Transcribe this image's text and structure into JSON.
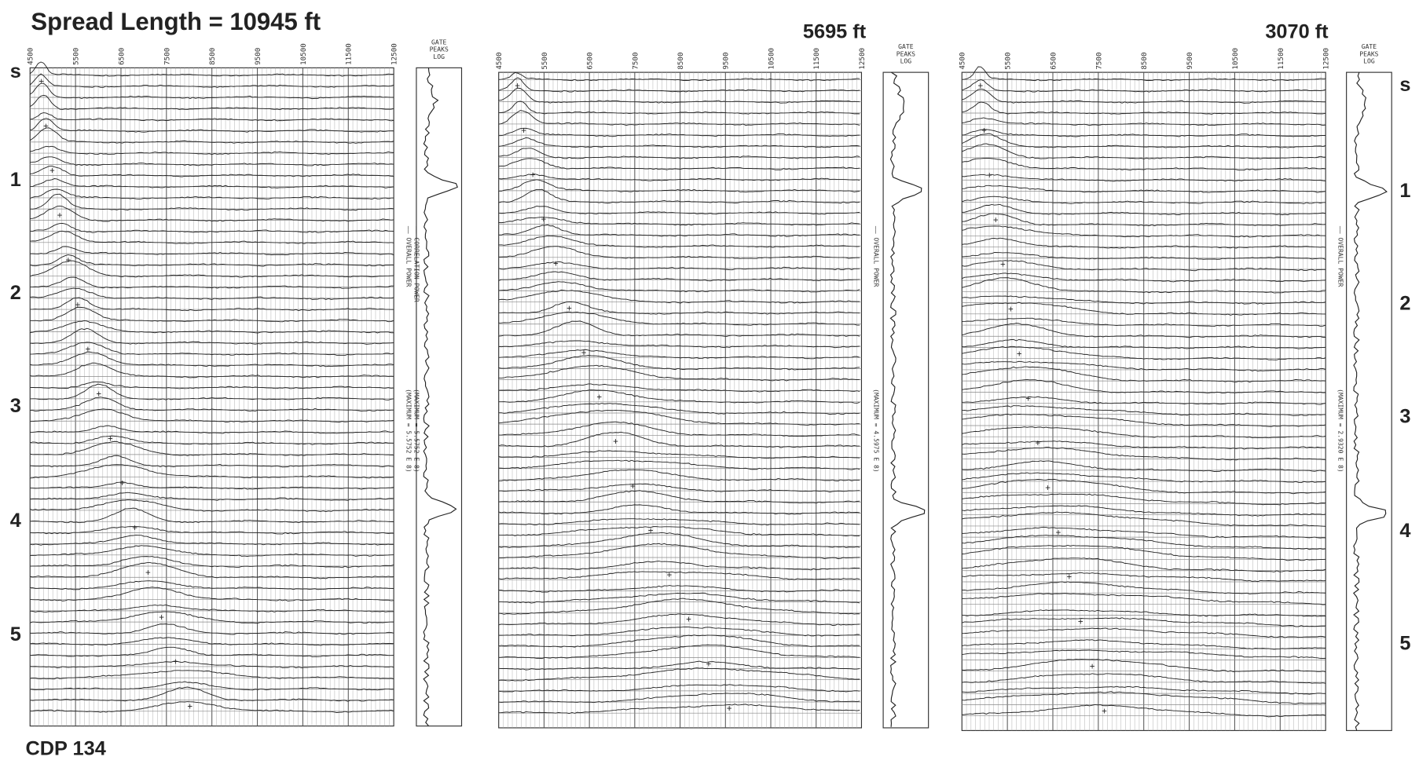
{
  "title": "Spread Length = 10945 ft",
  "footer": "CDP 134",
  "time_labels_left": [
    "s",
    "1",
    "2",
    "3",
    "4",
    "5"
  ],
  "time_labels_right": [
    "s",
    "1",
    "2",
    "3",
    "4",
    "5"
  ],
  "panels": [
    {
      "heading": null,
      "x_labels": [
        "4500",
        "5500",
        "6500",
        "7500",
        "8500",
        "9500",
        "10500",
        "11500",
        "12500"
      ],
      "log_title": [
        "GATE",
        "PEAKS",
        "LOG"
      ],
      "legend": [
        "—— OVERALL POWER",
        "—— CORRELATION POWER"
      ],
      "maximum": [
        "(MAXIMUM = 5.5752 E 8)",
        "(MAXIMUM = 5.5752 E 8)"
      ]
    },
    {
      "heading": "5695 ft",
      "x_labels": [
        "4500",
        "5500",
        "6500",
        "7500",
        "8500",
        "9500",
        "10500",
        "11500",
        "12500"
      ],
      "log_title": [
        "GATE",
        "PEAKS",
        "LOG"
      ],
      "legend": [
        "—— OVERALL POWER"
      ],
      "maximum": [
        "(MAXIMUM = 4.5975 E 8)"
      ]
    },
    {
      "heading": "3070 ft",
      "x_labels": [
        "4500",
        "5500",
        "6500",
        "7500",
        "8500",
        "9500",
        "10500",
        "11500",
        "12500"
      ],
      "log_title": [
        "GATE",
        "PEAKS",
        "LOG"
      ],
      "legend": [
        "—— OVERALL POWER"
      ],
      "maximum": [
        "(MAXIMUM = 2.9320 E 8)"
      ]
    }
  ]
}
